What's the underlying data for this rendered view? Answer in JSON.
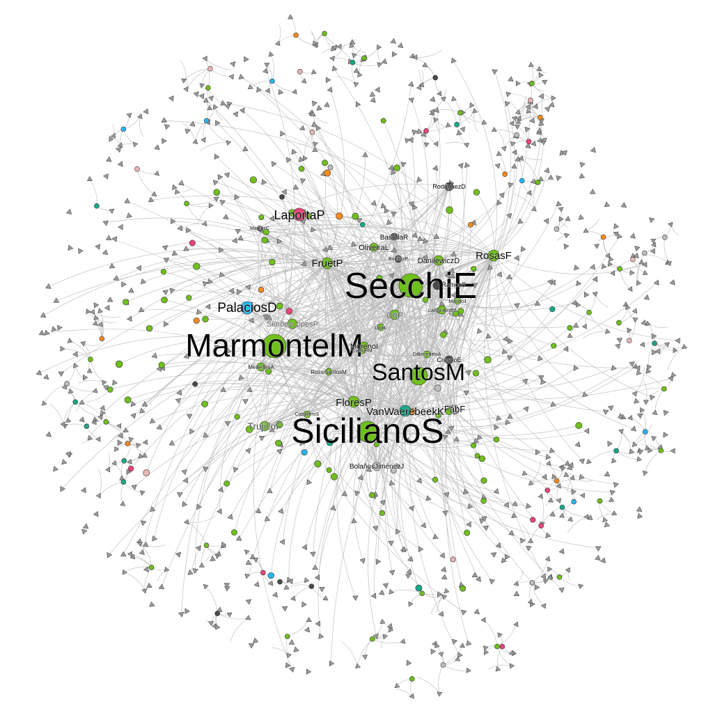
{
  "colors": {
    "green": "#6fbf1d",
    "pink": "#e8467a",
    "blue": "#29b6f0",
    "teal": "#19a88a",
    "orange": "#f58a1f",
    "dark": "#4a4a4a",
    "grey": "#bdbdbd",
    "rose": "#e8b5b5",
    "edge": "#b9b9b9",
    "leaf": "#9a9a9a"
  },
  "graph": {
    "labeled_nodes": [
      {
        "id": "SecchiE",
        "label": "SecchiE",
        "color": "green"
      },
      {
        "id": "MarmontelM",
        "label": "MarmontelM",
        "color": "green"
      },
      {
        "id": "SicilianoS",
        "label": "SicilianoS",
        "color": "green"
      },
      {
        "id": "SantosM",
        "label": "SantosM",
        "color": "green"
      },
      {
        "id": "LaportaP",
        "label": "LaportaP",
        "color": "pink"
      },
      {
        "id": "PalaciosD",
        "label": "PalaciosD",
        "color": "blue"
      },
      {
        "id": "FruetP",
        "label": "FruetP",
        "color": "green"
      },
      {
        "id": "RosasF",
        "label": "RosasF",
        "color": "green"
      },
      {
        "id": "FloresP",
        "label": "FloresP",
        "color": "green"
      },
      {
        "id": "VanWaerebeekK",
        "label": "VanWaerebeekK",
        "color": "teal"
      },
      {
        "id": "TrujilloF",
        "label": "TrujilloF",
        "color": "green"
      },
      {
        "id": "OttP",
        "label": "OttP",
        "color": "green"
      },
      {
        "id": "SimoesLopesP",
        "label": "SimõesLopesP",
        "color": "green"
      },
      {
        "id": "OliveiraL",
        "label": "OliveiraL",
        "color": "green"
      },
      {
        "id": "BastidaR",
        "label": "BastidaR",
        "color": "dark"
      },
      {
        "id": "DanilewiczD",
        "label": "DanilewiczD",
        "color": "green"
      },
      {
        "id": "RodriguezD",
        "label": "RodriguezD",
        "color": "dark"
      },
      {
        "id": "MorenoI",
        "label": "MorenoI",
        "color": "green"
      },
      {
        "id": "BolanosJimenezJ",
        "label": "BolañosJiménezJ",
        "color": "grey"
      },
      {
        "id": "MeirellesA",
        "label": "MeirellesA",
        "color": "green"
      },
      {
        "id": "RossiSantosM",
        "label": "RossiSantosM",
        "color": "green"
      },
      {
        "id": "CrespoE",
        "label": "CrespoE",
        "color": "dark"
      },
      {
        "id": "FabF",
        "label": "FabF",
        "color": "grey"
      },
      {
        "id": "DiBenedittoA",
        "label": "DiBenedittoA",
        "color": "green"
      },
      {
        "id": "CremerM",
        "label": "CremerM",
        "color": "green"
      },
      {
        "id": "LodiL",
        "label": "LodiL",
        "color": "green"
      },
      {
        "id": "LailsonBritoJ",
        "label": "LailsonBritoJ",
        "color": "green"
      },
      {
        "id": "MartinsC",
        "label": "MartinsC",
        "color": "dark"
      },
      {
        "id": "CaballeroS",
        "label": "CaballeroS",
        "color": "green"
      },
      {
        "id": "MarigoJ",
        "label": "MarigoJ",
        "color": "green"
      },
      {
        "id": "BonifazP",
        "label": "BonifazP",
        "color": "dark"
      },
      {
        "id": "RamosR",
        "label": "RamosR",
        "color": "dark"
      }
    ]
  }
}
